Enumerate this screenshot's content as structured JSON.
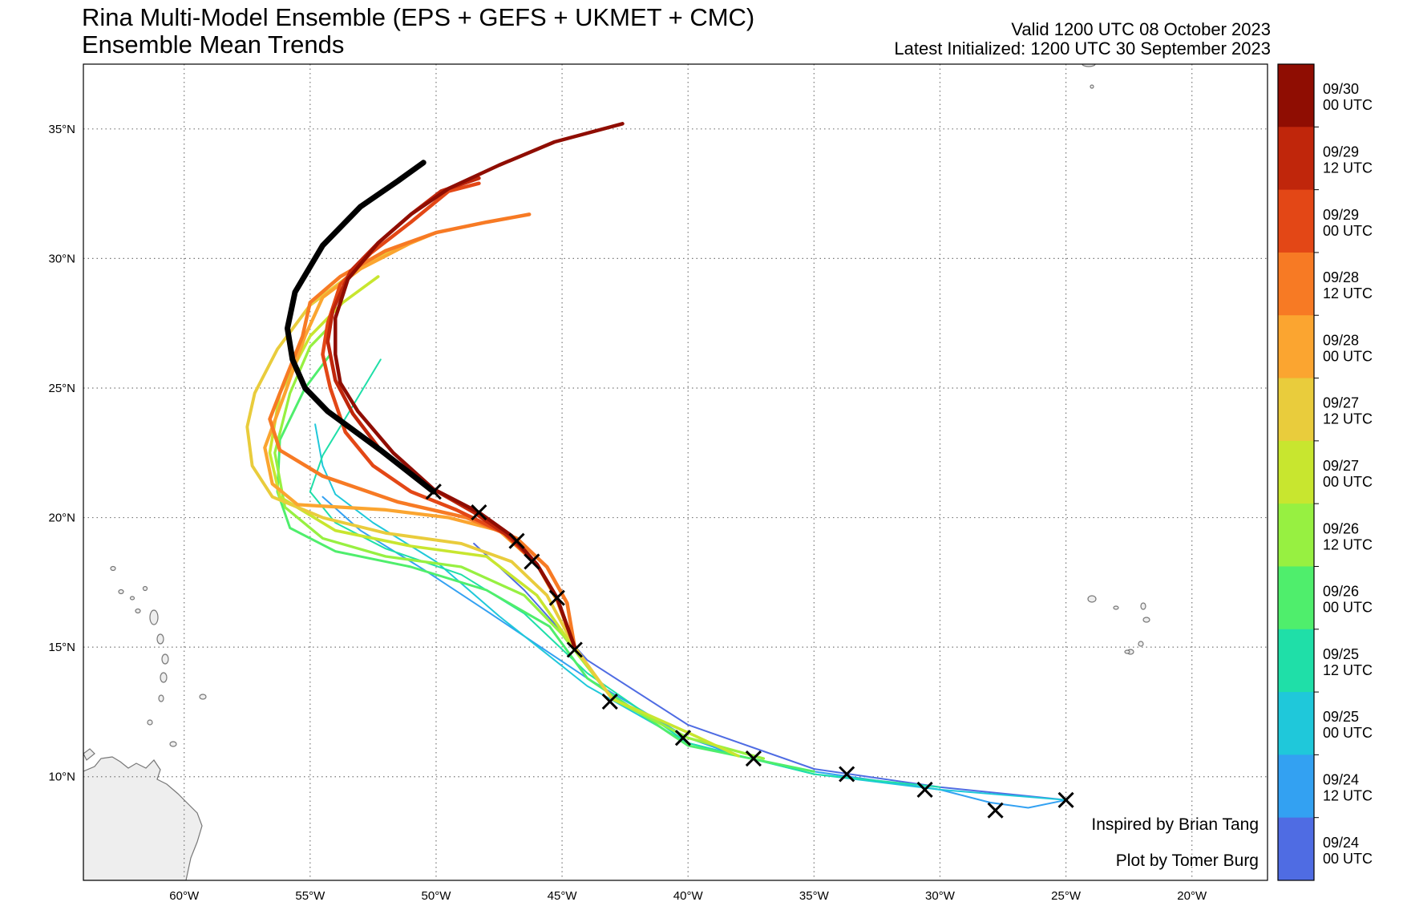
{
  "header": {
    "title": "Rina Multi-Model Ensemble (EPS + GEFS + UKMET + CMC)",
    "subtitle": "Ensemble Mean Trends",
    "valid": "Valid 1200 UTC 08 October 2023",
    "initialized": "Latest Initialized: 1200 UTC 30 September 2023"
  },
  "map": {
    "lon_range": [
      -64,
      -17
    ],
    "lat_range": [
      6,
      37.5
    ],
    "lon_ticks": [
      {
        "value": -60,
        "label": "60°W"
      },
      {
        "value": -55,
        "label": "55°W"
      },
      {
        "value": -50,
        "label": "50°W"
      },
      {
        "value": -45,
        "label": "45°W"
      },
      {
        "value": -40,
        "label": "40°W"
      },
      {
        "value": -35,
        "label": "35°W"
      },
      {
        "value": -30,
        "label": "30°W"
      },
      {
        "value": -25,
        "label": "25°W"
      },
      {
        "value": -20,
        "label": "20°W"
      }
    ],
    "lat_ticks": [
      {
        "value": 10,
        "label": "10°N"
      },
      {
        "value": 15,
        "label": "15°N"
      },
      {
        "value": 20,
        "label": "20°N"
      },
      {
        "value": 25,
        "label": "25°N"
      },
      {
        "value": 30,
        "label": "30°N"
      },
      {
        "value": 35,
        "label": "35°N"
      }
    ],
    "grid": true,
    "colors": {
      "land": "#eeeeee",
      "coast": "#777777",
      "grid": "#777777",
      "observed": "#000000"
    }
  },
  "observed_track": [
    [
      -25.0,
      9.1
    ],
    [
      -27.8,
      8.7
    ],
    [
      -30.6,
      9.5
    ],
    [
      -33.7,
      10.1
    ],
    [
      -37.4,
      10.7
    ],
    [
      -40.2,
      11.5
    ],
    [
      -43.1,
      12.9
    ],
    [
      -44.5,
      14.9
    ],
    [
      -45.2,
      16.9
    ],
    [
      -46.2,
      18.3
    ],
    [
      -46.8,
      19.1
    ],
    [
      -48.3,
      20.2
    ],
    [
      -50.1,
      21.0
    ]
  ],
  "ensemble_mean_tracks": [
    {
      "init": "09/24 00 UTC",
      "color": "#4f6ce3",
      "points": [
        [
          -25.0,
          9.1
        ],
        [
          -30,
          9.6
        ],
        [
          -35,
          10.3
        ],
        [
          -40,
          12.0
        ],
        [
          -44,
          14.5
        ],
        [
          -46.5,
          17.2
        ],
        [
          -48.5,
          19.0
        ]
      ]
    },
    {
      "init": "09/24 12 UTC",
      "color": "#33a1f2",
      "points": [
        [
          -25.0,
          9.1
        ],
        [
          -26.5,
          8.8
        ],
        [
          -28,
          9.0
        ],
        [
          -30,
          9.5
        ],
        [
          -35,
          10.2
        ],
        [
          -38,
          10.8
        ],
        [
          -40,
          11.5
        ],
        [
          -44,
          13.8
        ],
        [
          -48,
          16.4
        ],
        [
          -50.5,
          18.0
        ],
        [
          -53,
          19.5
        ],
        [
          -54.5,
          20.8
        ]
      ]
    },
    {
      "init": "09/25 00 UTC",
      "color": "#1fc8da",
      "points": [
        [
          -25.0,
          9.1
        ],
        [
          -30,
          9.5
        ],
        [
          -35,
          10.1
        ],
        [
          -40,
          11.3
        ],
        [
          -44,
          13.5
        ],
        [
          -47.5,
          16.2
        ],
        [
          -50,
          18.3
        ],
        [
          -52.5,
          19.8
        ],
        [
          -54,
          20.9
        ],
        [
          -54.5,
          22
        ],
        [
          -54.8,
          23.6
        ]
      ]
    },
    {
      "init": "09/25 12 UTC",
      "color": "#1fdfa8",
      "points": [
        [
          -30,
          9.6
        ],
        [
          -35,
          10.1
        ],
        [
          -40,
          11.3
        ],
        [
          -44,
          14.0
        ],
        [
          -46.5,
          16.3
        ],
        [
          -49,
          17.8
        ],
        [
          -52,
          18.8
        ],
        [
          -54,
          19.8
        ],
        [
          -55,
          21
        ],
        [
          -54.5,
          22.4
        ],
        [
          -53.5,
          24
        ],
        [
          -52.2,
          26.1
        ]
      ]
    },
    {
      "init": "09/26 00 UTC",
      "color": "#4fee6c",
      "points": [
        [
          -35,
          10.2
        ],
        [
          -40,
          11.2
        ],
        [
          -44,
          13.8
        ],
        [
          -45.5,
          15.8
        ],
        [
          -48,
          17.2
        ],
        [
          -51,
          18.1
        ],
        [
          -54,
          18.7
        ],
        [
          -55.8,
          19.6
        ],
        [
          -56.3,
          21.0
        ],
        [
          -56.2,
          23.0
        ],
        [
          -55.2,
          25.0
        ],
        [
          -54.2,
          26.3
        ]
      ]
    },
    {
      "init": "09/26 12 UTC",
      "color": "#97f041",
      "points": [
        [
          -37,
          10.7
        ],
        [
          -40,
          11.5
        ],
        [
          -43,
          13.0
        ],
        [
          -45,
          15.5
        ],
        [
          -46.5,
          17.0
        ],
        [
          -49,
          18.1
        ],
        [
          -52,
          18.5
        ],
        [
          -54.5,
          19.2
        ],
        [
          -56,
          20.4
        ],
        [
          -56.4,
          22.5
        ],
        [
          -55.8,
          24.8
        ],
        [
          -55,
          26.6
        ],
        [
          -54.3,
          27.3
        ]
      ]
    },
    {
      "init": "09/27 00 UTC",
      "color": "#c8e62f",
      "points": [
        [
          -38,
          10.8
        ],
        [
          -40,
          11.7
        ],
        [
          -43,
          13.0
        ],
        [
          -44.7,
          15.2
        ],
        [
          -46,
          17.0
        ],
        [
          -48,
          18.5
        ],
        [
          -51,
          18.9
        ],
        [
          -54,
          19.5
        ],
        [
          -56.2,
          20.8
        ],
        [
          -56.6,
          22.5
        ],
        [
          -56.2,
          24.8
        ],
        [
          -55,
          27.0
        ],
        [
          -53.7,
          28.3
        ],
        [
          -52.3,
          29.3
        ]
      ]
    },
    {
      "init": "09/27 12 UTC",
      "color": "#e9cc3c",
      "points": [
        [
          -43,
          13.0
        ],
        [
          -44.5,
          15.0
        ],
        [
          -45.6,
          17.0
        ],
        [
          -47,
          18.3
        ],
        [
          -49,
          19.0
        ],
        [
          -52,
          19.4
        ],
        [
          -54.5,
          20.0
        ],
        [
          -56.5,
          20.8
        ],
        [
          -57.3,
          22
        ],
        [
          -57.5,
          23.5
        ],
        [
          -57.2,
          24.8
        ],
        [
          -56.3,
          26.5
        ],
        [
          -55,
          28.2
        ],
        [
          -53.5,
          29.3
        ],
        [
          -52,
          30.2
        ],
        [
          -50,
          31.0
        ]
      ]
    },
    {
      "init": "09/28 00 UTC",
      "color": "#fba530",
      "points": [
        [
          -44.5,
          15.0
        ],
        [
          -45.2,
          16.8
        ],
        [
          -46,
          18.2
        ],
        [
          -47.5,
          19.5
        ],
        [
          -49.5,
          20.0
        ],
        [
          -52,
          20.3
        ],
        [
          -55.5,
          20.5
        ],
        [
          -56.5,
          21.3
        ],
        [
          -56.8,
          22.7
        ],
        [
          -56,
          24.8
        ],
        [
          -55.2,
          27
        ],
        [
          -54.5,
          28.5
        ],
        [
          -53,
          29.6
        ],
        [
          -51,
          30.6
        ],
        [
          -50,
          31.0
        ]
      ]
    },
    {
      "init": "09/28 12 UTC",
      "color": "#f77a24",
      "points": [
        [
          -44.5,
          15.0
        ],
        [
          -44.8,
          16.7
        ],
        [
          -45.6,
          18.1
        ],
        [
          -46.8,
          19.2
        ],
        [
          -48.8,
          20.0
        ],
        [
          -51.5,
          20.6
        ],
        [
          -54.5,
          21.6
        ],
        [
          -56.2,
          22.6
        ],
        [
          -56.6,
          23.8
        ],
        [
          -56.0,
          25.3
        ],
        [
          -55.3,
          27.0
        ],
        [
          -55,
          28.3
        ],
        [
          -53.8,
          29.3
        ],
        [
          -52,
          30.3
        ],
        [
          -50,
          31.0
        ],
        [
          -48,
          31.4
        ],
        [
          -46.3,
          31.7
        ]
      ]
    },
    {
      "init": "09/29 00 UTC",
      "color": "#e34716",
      "points": [
        [
          -44.5,
          15.0
        ],
        [
          -45.2,
          16.9
        ],
        [
          -46,
          18.2
        ],
        [
          -47.3,
          19.4
        ],
        [
          -49.2,
          20.3
        ],
        [
          -51,
          21.0
        ],
        [
          -52.5,
          22.0
        ],
        [
          -53.6,
          23.3
        ],
        [
          -54.2,
          25.0
        ],
        [
          -54.5,
          26.3
        ],
        [
          -54.3,
          27.5
        ],
        [
          -53.8,
          29.0
        ],
        [
          -52.6,
          30.2
        ],
        [
          -51,
          31.4
        ],
        [
          -49.5,
          32.6
        ],
        [
          -48.3,
          32.9
        ]
      ]
    },
    {
      "init": "09/29 12 UTC",
      "color": "#c0260b",
      "points": [
        [
          -44.5,
          15.0
        ],
        [
          -45.2,
          16.9
        ],
        [
          -46,
          18.2
        ],
        [
          -47,
          19.2
        ],
        [
          -48.5,
          20.2
        ],
        [
          -50.3,
          21.2
        ],
        [
          -52.2,
          22.6
        ],
        [
          -53.3,
          24.0
        ],
        [
          -54.0,
          25.3
        ],
        [
          -54.3,
          26.8
        ],
        [
          -54.1,
          28.0
        ],
        [
          -53.4,
          29.5
        ],
        [
          -52.3,
          30.6
        ],
        [
          -51,
          31.7
        ],
        [
          -49.8,
          32.6
        ],
        [
          -48.3,
          33.1
        ]
      ]
    },
    {
      "init": "09/30 00 UTC",
      "color": "#8f0d02",
      "points": [
        [
          -44.5,
          15.0
        ],
        [
          -45.2,
          16.9
        ],
        [
          -46,
          18.2
        ],
        [
          -47,
          19.3
        ],
        [
          -48.3,
          20.2
        ],
        [
          -50.1,
          21.1
        ],
        [
          -51.7,
          22.5
        ],
        [
          -53.1,
          24.1
        ],
        [
          -53.8,
          25.2
        ],
        [
          -54.0,
          26.3
        ],
        [
          -54.0,
          27.7
        ],
        [
          -53.5,
          29.2
        ],
        [
          -52.3,
          30.6
        ],
        [
          -51,
          31.7
        ],
        [
          -49.5,
          32.7
        ],
        [
          -47.5,
          33.6
        ],
        [
          -45.3,
          34.5
        ],
        [
          -42.6,
          35.2
        ]
      ]
    },
    {
      "init": "09/30 12 UTC (latest)",
      "color": "#000000",
      "points": [
        [
          -50.1,
          21.0
        ],
        [
          -52.2,
          22.6
        ],
        [
          -54.3,
          24.1
        ],
        [
          -55.2,
          25.0
        ],
        [
          -55.7,
          26.1
        ],
        [
          -55.9,
          27.3
        ],
        [
          -55.6,
          28.7
        ],
        [
          -54.5,
          30.5
        ],
        [
          -53,
          32.0
        ],
        [
          -51.5,
          33.0
        ],
        [
          -50.5,
          33.7
        ]
      ]
    }
  ],
  "colorbar": {
    "labels": [
      [
        "09/30",
        "00 UTC"
      ],
      [
        "09/29",
        "12 UTC"
      ],
      [
        "09/29",
        "00 UTC"
      ],
      [
        "09/28",
        "12 UTC"
      ],
      [
        "09/28",
        "00 UTC"
      ],
      [
        "09/27",
        "12 UTC"
      ],
      [
        "09/27",
        "00 UTC"
      ],
      [
        "09/26",
        "12 UTC"
      ],
      [
        "09/26",
        "00 UTC"
      ],
      [
        "09/25",
        "12 UTC"
      ],
      [
        "09/25",
        "00 UTC"
      ],
      [
        "09/24",
        "12 UTC"
      ],
      [
        "09/24",
        "00 UTC"
      ]
    ],
    "colors": [
      "#8f0d02",
      "#c0260b",
      "#e34716",
      "#f77a24",
      "#fba530",
      "#e9cc3c",
      "#c8e62f",
      "#97f041",
      "#4fee6c",
      "#1fdfa8",
      "#1fc8da",
      "#33a1f2",
      "#4f6ce3"
    ]
  },
  "credits": {
    "inspired": "Inspired by Brian Tang",
    "plot_by": "Plot by Tomer Burg"
  }
}
